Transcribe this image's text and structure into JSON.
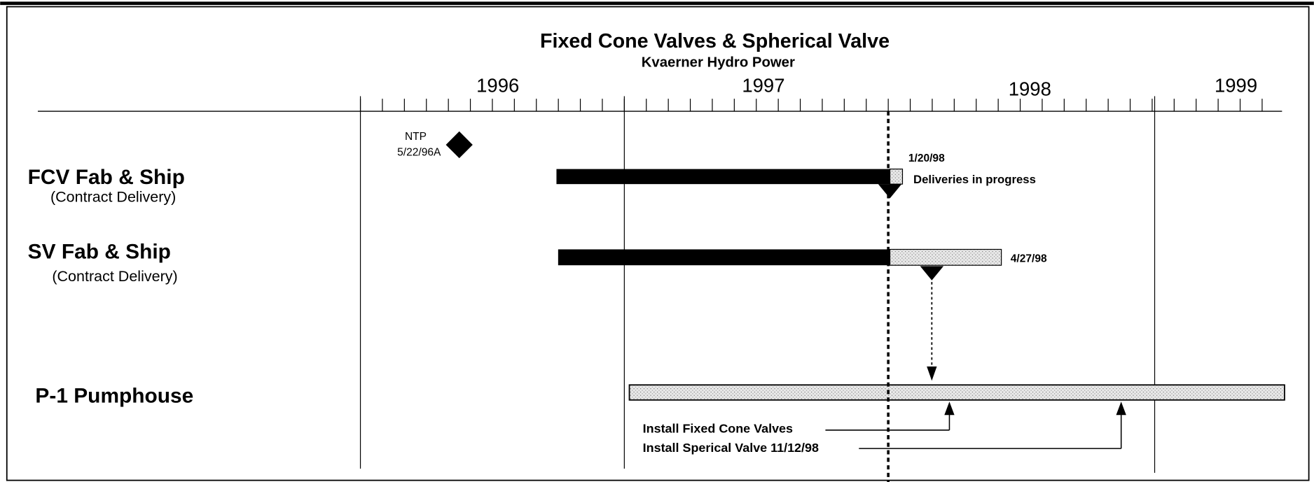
{
  "header": {
    "title": "Fixed Cone Valves & Spherical Valve",
    "subtitle": "Kvaerner Hydro Power"
  },
  "timeline": {
    "years": [
      "1996",
      "1997",
      "1998",
      "1999"
    ]
  },
  "rows": [
    {
      "label": "FCV Fab & Ship",
      "sublabel": "(Contract Delivery)"
    },
    {
      "label": "SV Fab & Ship",
      "sublabel": "(Contract Delivery)"
    },
    {
      "label": "P-1 Pumphouse"
    }
  ],
  "milestone": {
    "label": "NTP",
    "date": "5/22/96A"
  },
  "annotations": {
    "fcv_date": "1/20/98",
    "fcv_note": "Deliveries in progress",
    "sv_date": "4/27/98",
    "install_fcv": "Install Fixed Cone Valves",
    "install_sv": "Install Sperical Valve 11/12/98"
  }
}
